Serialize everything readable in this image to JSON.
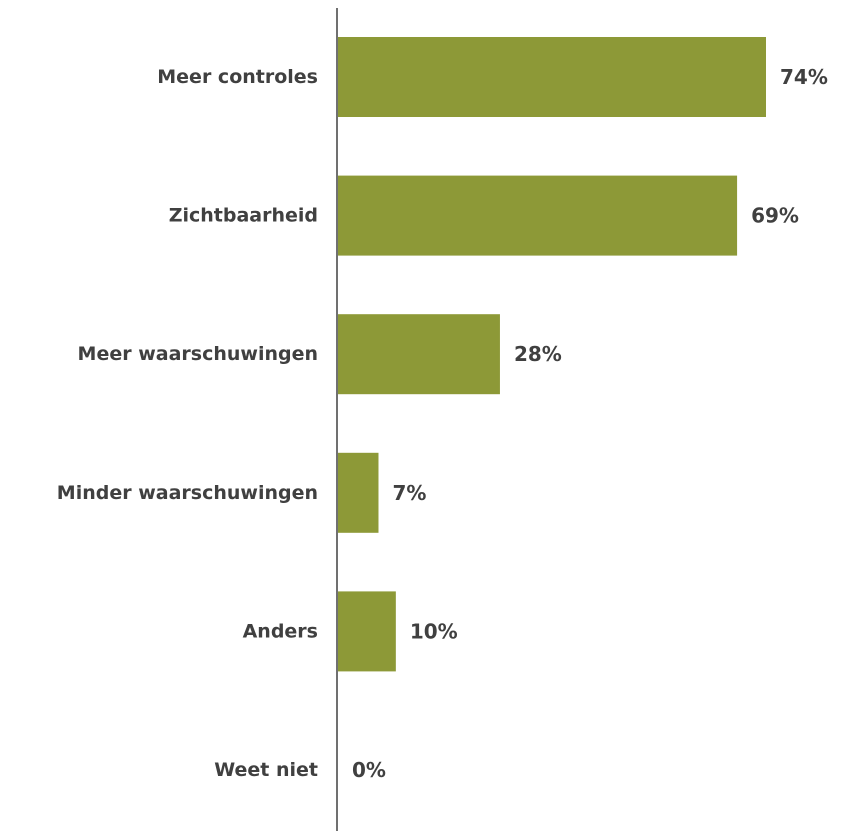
{
  "chart_data": {
    "type": "bar",
    "orientation": "horizontal",
    "categories": [
      "Meer controles",
      "Zichtbaarheid",
      "Meer waarschuwingen",
      "Minder waarschuwingen",
      "Anders",
      "Weet niet"
    ],
    "values": [
      74,
      69,
      28,
      7,
      10,
      0
    ],
    "value_labels": [
      "74%",
      "69%",
      "28%",
      "7%",
      "10%",
      "0%"
    ],
    "value_suffix": "%",
    "xlim": [
      0,
      74
    ],
    "grid": false,
    "legend": "none",
    "bar_color": "#8D9937",
    "axis_color": "#404040",
    "text_color": "#404040"
  }
}
